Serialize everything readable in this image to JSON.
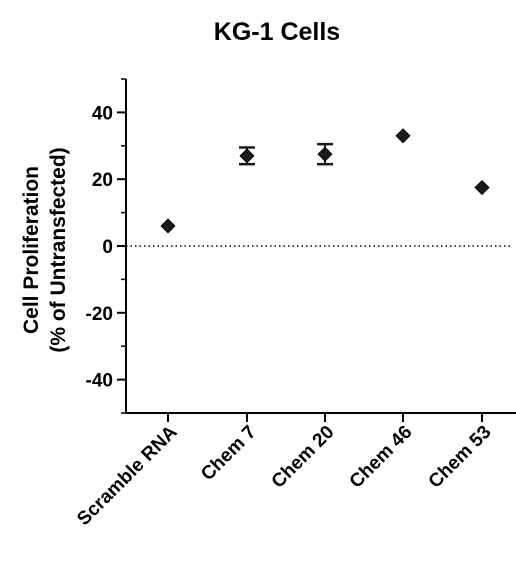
{
  "chart_data": {
    "type": "scatter",
    "title": "KG-1 Cells",
    "ylabel_line1": "Cell Proliferation",
    "ylabel_line2": "(% of Untransfected)",
    "xlabel": "",
    "categories": [
      "Scramble RNA",
      "Chem 7",
      "Chem 20",
      "Chem 46",
      "Chem 53"
    ],
    "values": [
      6,
      27,
      27.5,
      33,
      17.5
    ],
    "error": [
      0.6,
      2.5,
      3,
      0.6,
      0.6
    ],
    "ylim": [
      -50,
      50
    ],
    "yticks": [
      -40,
      -20,
      0,
      20,
      40
    ],
    "ytick_labels": [
      "-40",
      "-20",
      "0",
      "20",
      "40"
    ],
    "reference_line": {
      "y": 0,
      "style": "dotted"
    },
    "marker": "diamond",
    "marker_color": "#1a1a1a",
    "grid": false,
    "legend": "none"
  }
}
